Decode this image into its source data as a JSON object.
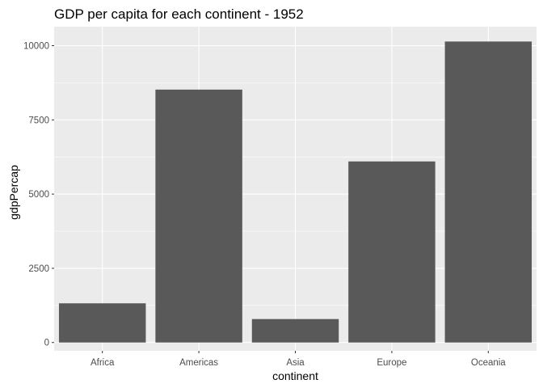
{
  "chart_data": {
    "type": "bar",
    "title": "GDP per capita for each continent - 1952",
    "xlabel": "continent",
    "ylabel": "gdpPercap",
    "categories": [
      "Africa",
      "Americas",
      "Asia",
      "Europe",
      "Oceania"
    ],
    "values": [
      1320,
      8520,
      790,
      6100,
      10140
    ],
    "ylim": [
      -280,
      10640
    ],
    "yticks": [
      0,
      2500,
      5000,
      7500,
      10000
    ],
    "ytick_labels": [
      "0",
      "2500",
      "5000",
      "7500",
      "10000"
    ],
    "grid": true,
    "legend": "none",
    "colors": {
      "panel_background": "#ebebeb",
      "grid_major": "#ffffff",
      "bar_fill": "#595959",
      "tick_label": "#4d4d4d",
      "tick_mark": "#333333"
    }
  }
}
